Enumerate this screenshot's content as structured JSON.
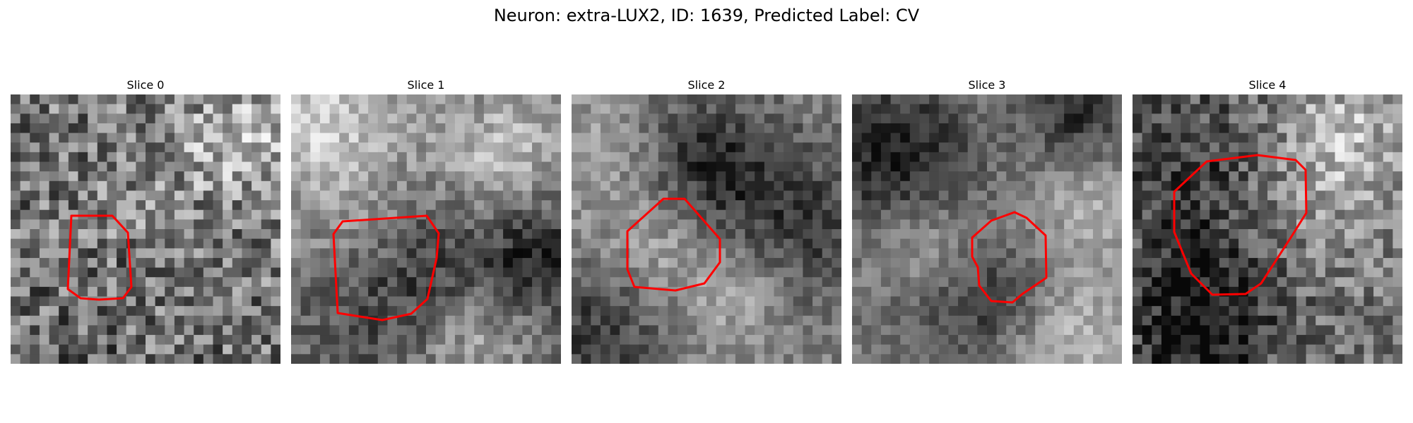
{
  "figure": {
    "title": "Neuron: extra-LUX2, ID: 1639, Predicted Label: CV"
  },
  "panels": [
    {
      "title": "Slice 0"
    },
    {
      "title": "Slice 1"
    },
    {
      "title": "Slice 2"
    },
    {
      "title": "Slice 3"
    },
    {
      "title": "Slice 4"
    }
  ],
  "contour_color": "#ff0000"
}
